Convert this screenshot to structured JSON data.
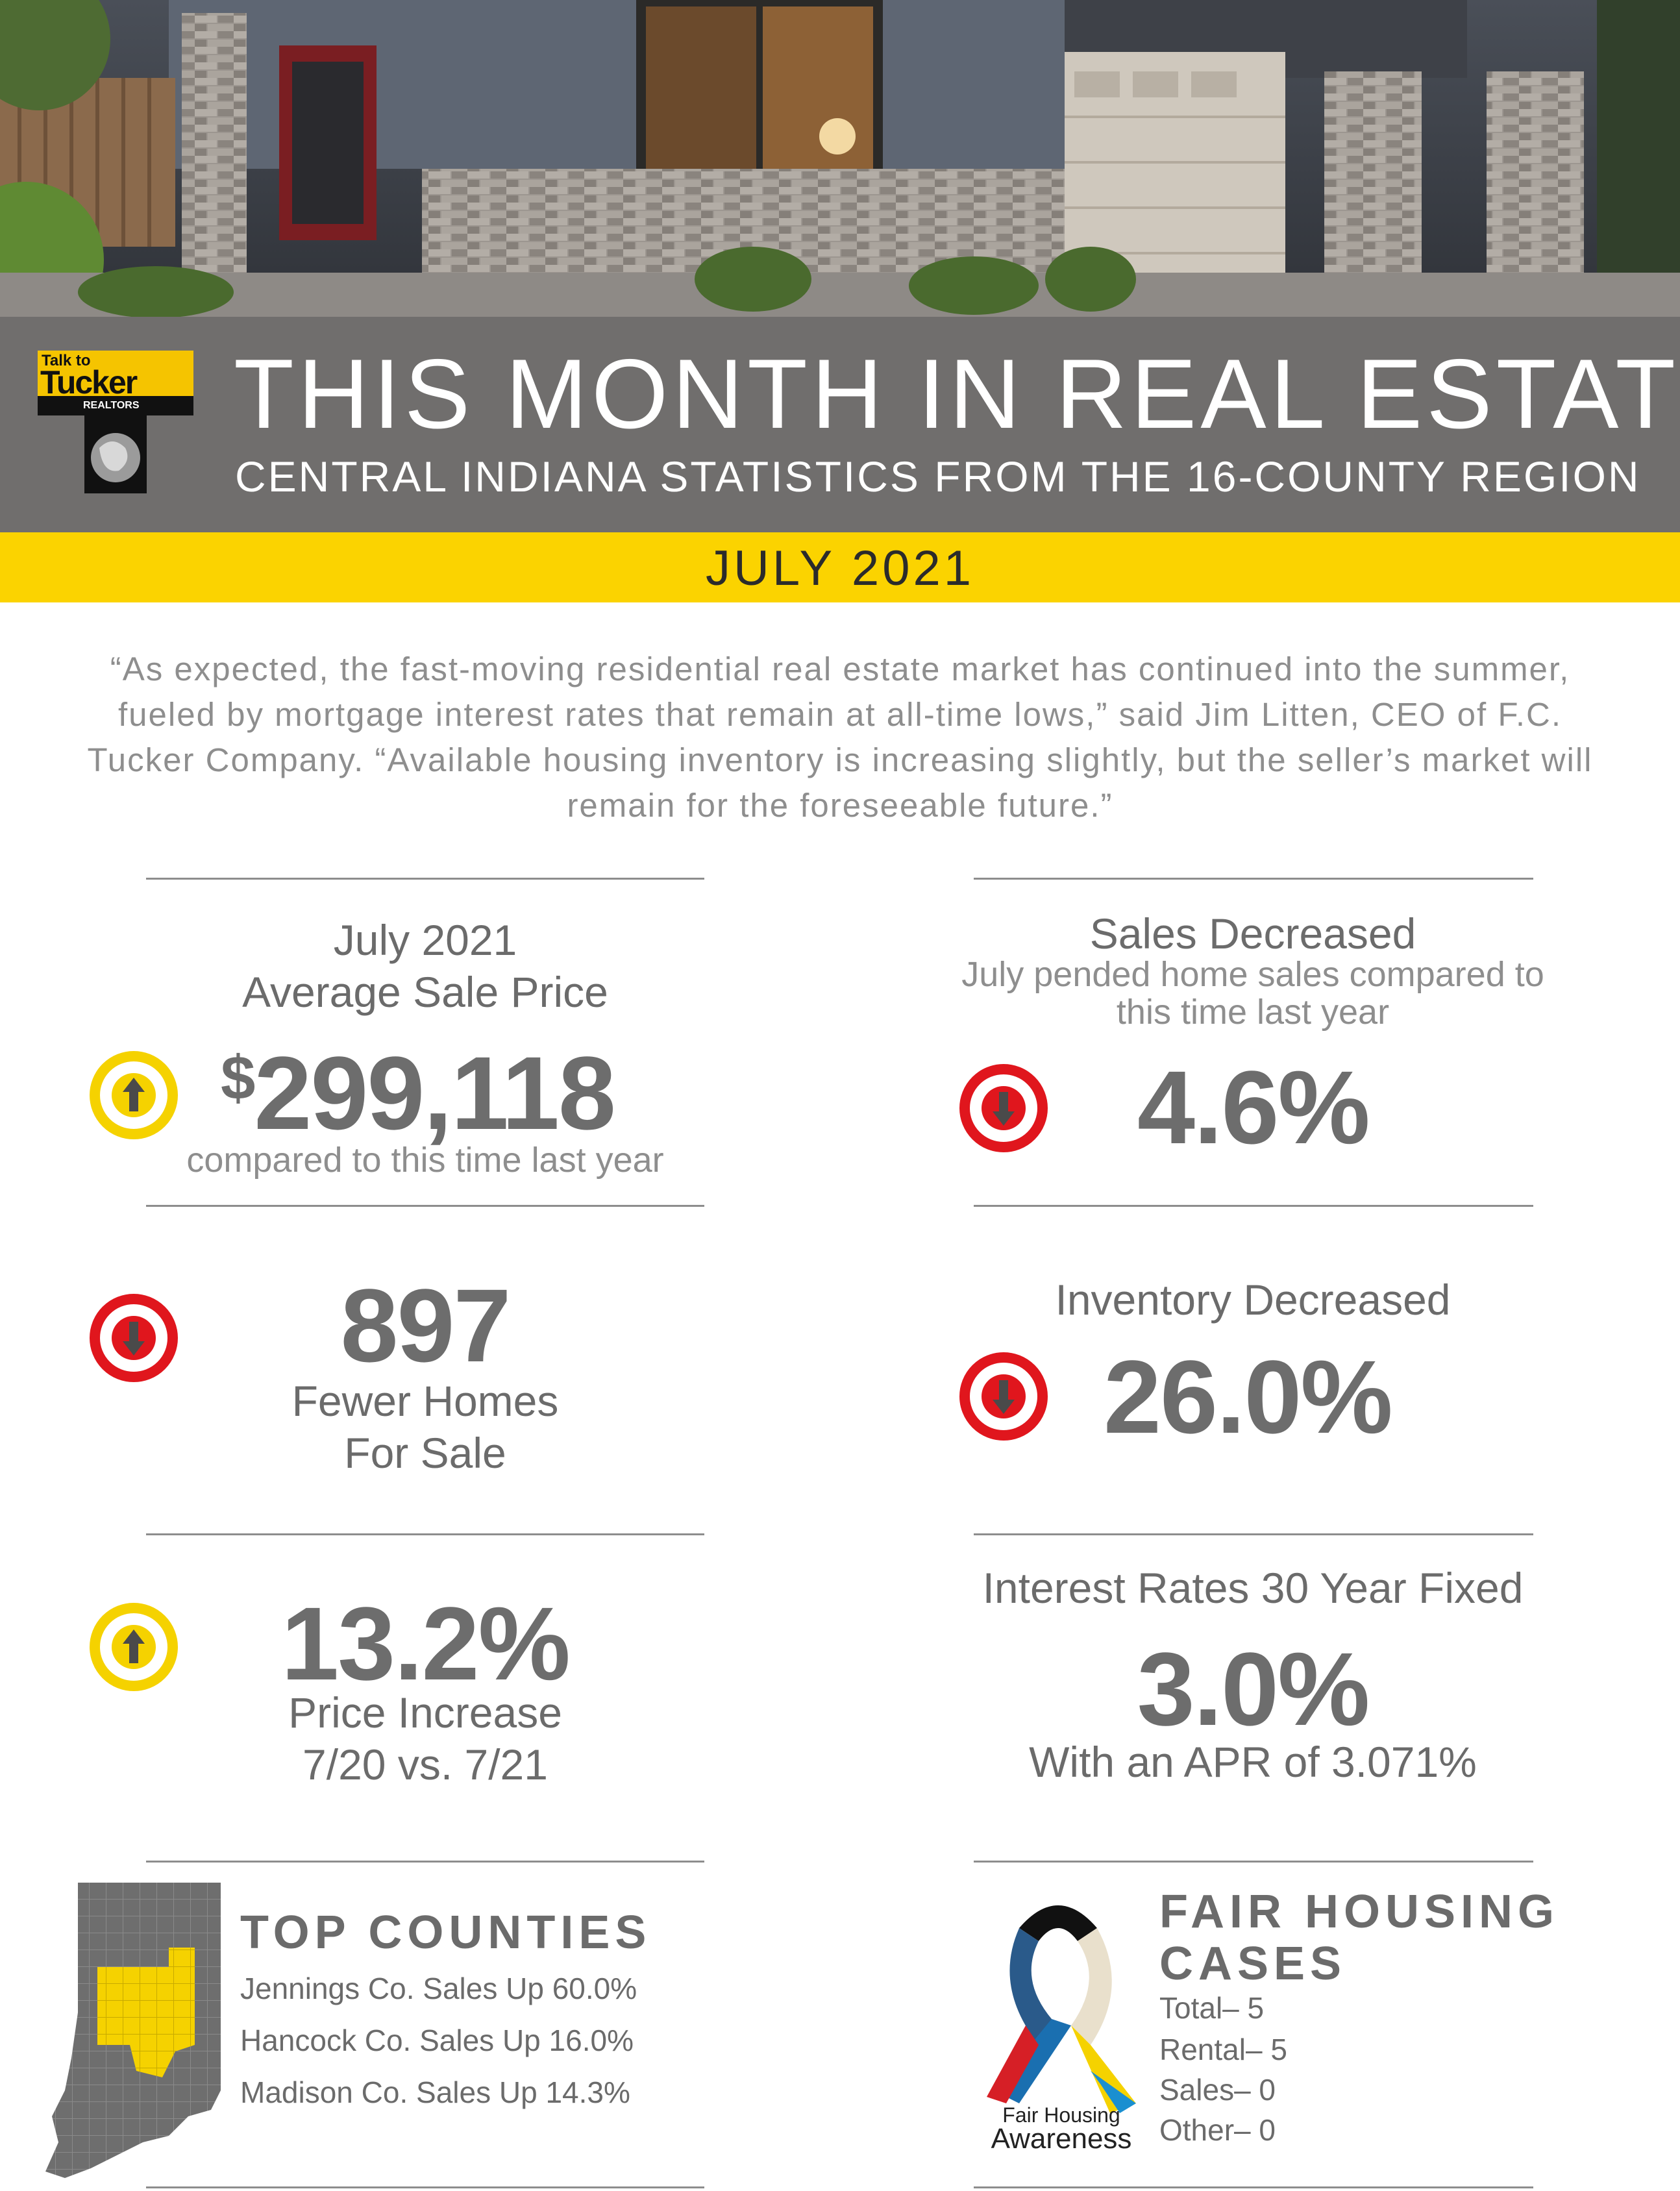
{
  "header": {
    "title": "THIS MONTH IN REAL ESTATE",
    "subtitle": "CENTRAL INDIANA STATISTICS FROM THE 16-COUNTY REGION",
    "date": "JULY 2021"
  },
  "logo": {
    "line1": "Talk to",
    "line2": "Tucker",
    "line3": "REALTORS"
  },
  "quote": "“As expected, the fast-moving residential real estate market has continued into the summer, fueled by mortgage interest rates that remain at all-time lows,” said Jim Litten, CEO of F.C. Tucker Company. “Available housing inventory is increasing slightly, but the seller’s market will remain for the foreseeable future.”",
  "stats": {
    "avg_price": {
      "label1": "July 2021",
      "label2": "Average Sale Price",
      "currency": "$",
      "value": "299,118",
      "note": "compared to this time last year",
      "direction": "up"
    },
    "sales": {
      "heading": "Sales Decreased",
      "note1": "July pended home sales compared to",
      "note2": "this time last year",
      "value": "4.6%",
      "direction": "down"
    },
    "homes": {
      "value": "897",
      "label1": "Fewer Homes",
      "label2": "For Sale",
      "direction": "down"
    },
    "inventory": {
      "heading": "Inventory Decreased",
      "value": "26.0%",
      "direction": "down"
    },
    "price_increase": {
      "value": "13.2%",
      "label1": "Price Increase",
      "label2": "7/20 vs. 7/21",
      "direction": "up"
    },
    "interest": {
      "heading": "Interest Rates 30 Year Fixed",
      "value": "3.0%",
      "note": "With an APR of 3.071%"
    }
  },
  "top_counties": {
    "heading": "TOP COUNTIES",
    "items": [
      "Jennings Co. Sales Up 60.0%",
      "Hancock Co. Sales Up 16.0%",
      "Madison Co. Sales Up 14.3%"
    ]
  },
  "fair_housing": {
    "heading1": "FAIR HOUSING",
    "heading2": "CASES",
    "items": [
      "Total– 5",
      "Rental– 5",
      "Sales– 0",
      "Other– 0"
    ],
    "ribbon_caption1": "Fair Housing",
    "ribbon_caption2": "Awareness"
  },
  "colors": {
    "up": "#f5d200",
    "down": "#e0161d",
    "band": "#706e6d",
    "accent": "#fbd300"
  }
}
